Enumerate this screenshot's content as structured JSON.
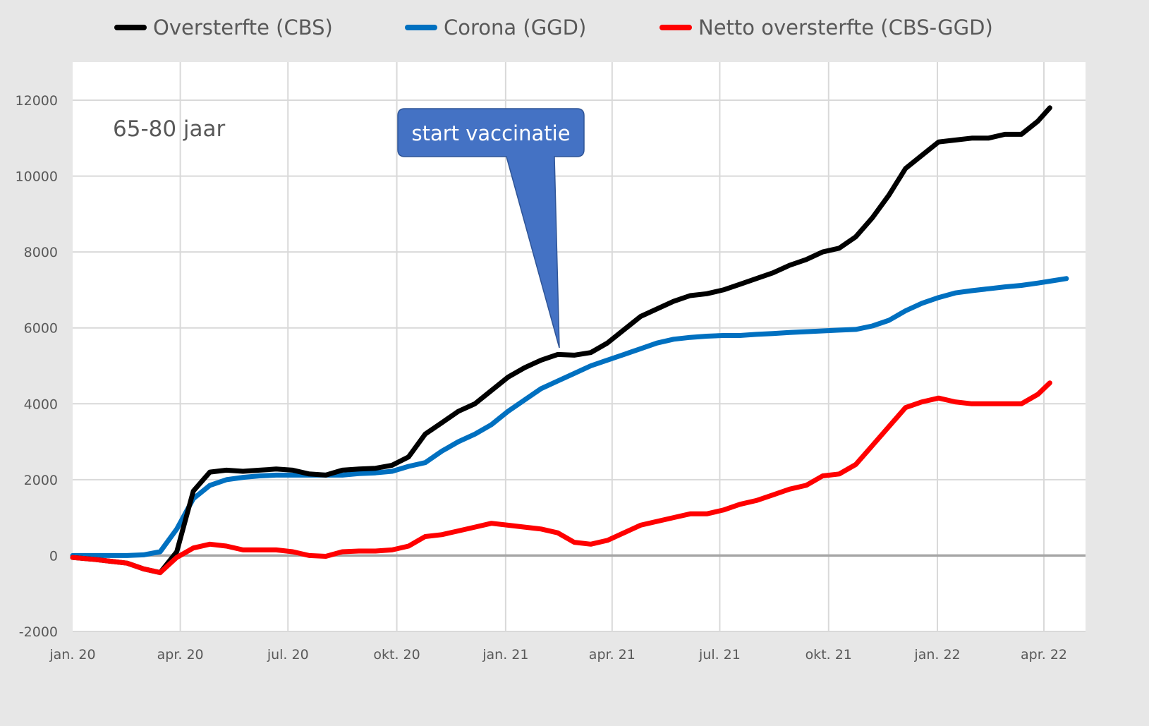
{
  "chart_data": {
    "type": "line",
    "title": "",
    "xlabel": "",
    "ylabel": "",
    "annotation_label": "65-80 jaar",
    "callout": {
      "text": "start vaccinatie",
      "points_to_date": "2021-02-20",
      "points_to_value": 5300,
      "color": "#4472C4"
    },
    "ylim": [
      -2000,
      12000
    ],
    "yticks": [
      -2000,
      0,
      2000,
      4000,
      6000,
      8000,
      10000,
      12000
    ],
    "xticks": [
      {
        "date": "2020-01-01",
        "label": "jan. 20"
      },
      {
        "date": "2020-04-01",
        "label": "apr. 20"
      },
      {
        "date": "2020-07-01",
        "label": "jul. 20"
      },
      {
        "date": "2020-10-01",
        "label": "okt. 20"
      },
      {
        "date": "2021-01-01",
        "label": "jan. 21"
      },
      {
        "date": "2021-04-01",
        "label": "apr. 21"
      },
      {
        "date": "2021-07-01",
        "label": "jul. 21"
      },
      {
        "date": "2021-10-01",
        "label": "okt. 21"
      },
      {
        "date": "2022-01-01",
        "label": "jan. 22"
      },
      {
        "date": "2022-04-01",
        "label": "apr. 22"
      }
    ],
    "xlim": [
      "2020-01-01",
      "2022-05-05"
    ],
    "grid": true,
    "legend_position": "top",
    "series": [
      {
        "name": "Oversterfte (CBS)",
        "color": "#000000",
        "x": [
          "2020-01-01",
          "2020-01-19",
          "2020-02-02",
          "2020-02-16",
          "2020-03-01",
          "2020-03-15",
          "2020-03-29",
          "2020-04-12",
          "2020-04-26",
          "2020-05-10",
          "2020-05-24",
          "2020-06-07",
          "2020-06-21",
          "2020-07-05",
          "2020-07-19",
          "2020-08-02",
          "2020-08-16",
          "2020-08-30",
          "2020-09-13",
          "2020-09-27",
          "2020-10-11",
          "2020-10-25",
          "2020-11-08",
          "2020-11-22",
          "2020-12-06",
          "2020-12-20",
          "2021-01-03",
          "2021-01-17",
          "2021-01-31",
          "2021-02-14",
          "2021-02-28",
          "2021-03-14",
          "2021-03-28",
          "2021-04-11",
          "2021-04-25",
          "2021-05-09",
          "2021-05-23",
          "2021-06-06",
          "2021-06-20",
          "2021-07-04",
          "2021-07-18",
          "2021-08-01",
          "2021-08-15",
          "2021-08-29",
          "2021-09-12",
          "2021-09-26",
          "2021-10-10",
          "2021-10-24",
          "2021-11-07",
          "2021-11-21",
          "2021-12-05",
          "2021-12-19",
          "2022-01-02",
          "2022-01-16",
          "2022-01-30",
          "2022-02-13",
          "2022-02-27",
          "2022-03-13",
          "2022-03-27",
          "2022-04-06"
        ],
        "y": [
          -50,
          -100,
          -150,
          -200,
          -350,
          -450,
          100,
          1700,
          2200,
          2250,
          2220,
          2250,
          2280,
          2250,
          2150,
          2120,
          2250,
          2280,
          2300,
          2380,
          2600,
          3200,
          3500,
          3800,
          4000,
          4350,
          4700,
          4950,
          5150,
          5300,
          5280,
          5350,
          5600,
          5950,
          6300,
          6500,
          6700,
          6850,
          6900,
          7000,
          7150,
          7300,
          7450,
          7650,
          7800,
          8000,
          8100,
          8400,
          8900,
          9500,
          10200,
          10550,
          10900,
          10950,
          11000,
          11000,
          11100,
          11100,
          11450,
          11800
        ]
      },
      {
        "name": "Corona (GGD)",
        "color": "#0070C0",
        "x": [
          "2020-01-01",
          "2020-02-16",
          "2020-03-01",
          "2020-03-15",
          "2020-03-29",
          "2020-04-12",
          "2020-04-26",
          "2020-05-10",
          "2020-05-24",
          "2020-06-07",
          "2020-06-21",
          "2020-08-16",
          "2020-08-30",
          "2020-09-13",
          "2020-09-27",
          "2020-10-11",
          "2020-10-25",
          "2020-11-08",
          "2020-11-22",
          "2020-12-06",
          "2020-12-20",
          "2021-01-03",
          "2021-01-17",
          "2021-01-31",
          "2021-02-14",
          "2021-02-28",
          "2021-03-14",
          "2021-03-28",
          "2021-04-11",
          "2021-04-25",
          "2021-05-09",
          "2021-05-23",
          "2021-06-06",
          "2021-06-20",
          "2021-07-04",
          "2021-07-18",
          "2021-08-01",
          "2021-08-15",
          "2021-08-29",
          "2021-09-12",
          "2021-09-26",
          "2021-10-10",
          "2021-10-24",
          "2021-11-07",
          "2021-11-21",
          "2021-12-05",
          "2021-12-19",
          "2022-01-02",
          "2022-01-16",
          "2022-01-30",
          "2022-02-13",
          "2022-02-27",
          "2022-03-13",
          "2022-03-27",
          "2022-04-10",
          "2022-04-20"
        ],
        "y": [
          0,
          0,
          20,
          100,
          700,
          1500,
          1850,
          2000,
          2060,
          2100,
          2120,
          2120,
          2160,
          2180,
          2220,
          2350,
          2450,
          2750,
          3000,
          3200,
          3450,
          3800,
          4100,
          4400,
          4600,
          4800,
          5000,
          5150,
          5300,
          5450,
          5600,
          5700,
          5750,
          5780,
          5800,
          5800,
          5830,
          5850,
          5880,
          5900,
          5920,
          5940,
          5960,
          6050,
          6200,
          6450,
          6650,
          6800,
          6920,
          6980,
          7030,
          7080,
          7120,
          7180,
          7250,
          7300
        ]
      },
      {
        "name": "Netto oversterfte (CBS-GGD)",
        "color": "#FF0000",
        "x": [
          "2020-01-01",
          "2020-01-19",
          "2020-02-02",
          "2020-02-16",
          "2020-03-01",
          "2020-03-15",
          "2020-03-29",
          "2020-04-12",
          "2020-04-26",
          "2020-05-10",
          "2020-05-24",
          "2020-06-07",
          "2020-06-21",
          "2020-07-05",
          "2020-07-19",
          "2020-08-02",
          "2020-08-16",
          "2020-08-30",
          "2020-09-13",
          "2020-09-27",
          "2020-10-11",
          "2020-10-25",
          "2020-11-08",
          "2020-11-22",
          "2020-12-06",
          "2020-12-20",
          "2021-01-03",
          "2021-01-17",
          "2021-01-31",
          "2021-02-14",
          "2021-02-28",
          "2021-03-14",
          "2021-03-28",
          "2021-04-11",
          "2021-04-25",
          "2021-05-09",
          "2021-05-23",
          "2021-06-06",
          "2021-06-20",
          "2021-07-04",
          "2021-07-18",
          "2021-08-01",
          "2021-08-15",
          "2021-08-29",
          "2021-09-12",
          "2021-09-26",
          "2021-10-10",
          "2021-10-24",
          "2021-11-07",
          "2021-11-21",
          "2021-12-05",
          "2021-12-19",
          "2022-01-02",
          "2022-01-16",
          "2022-01-30",
          "2022-02-13",
          "2022-02-27",
          "2022-03-13",
          "2022-03-27",
          "2022-04-06"
        ],
        "y": [
          -50,
          -100,
          -150,
          -200,
          -350,
          -450,
          -50,
          200,
          300,
          250,
          150,
          150,
          150,
          100,
          0,
          -20,
          100,
          120,
          120,
          150,
          250,
          500,
          550,
          650,
          750,
          850,
          800,
          750,
          700,
          600,
          350,
          300,
          400,
          600,
          800,
          900,
          1000,
          1100,
          1100,
          1200,
          1350,
          1450,
          1600,
          1750,
          1850,
          2100,
          2150,
          2400,
          2900,
          3400,
          3900,
          4050,
          4150,
          4050,
          4000,
          4000,
          4000,
          4000,
          4250,
          4550
        ]
      }
    ]
  }
}
